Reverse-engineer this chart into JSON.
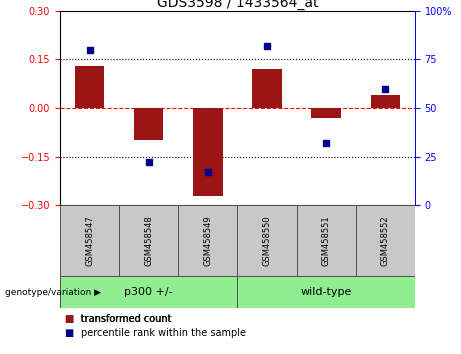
{
  "title": "GDS3598 / 1433564_at",
  "samples": [
    "GSM458547",
    "GSM458548",
    "GSM458549",
    "GSM458550",
    "GSM458551",
    "GSM458552"
  ],
  "red_bars": [
    0.13,
    -0.1,
    -0.27,
    0.12,
    -0.03,
    0.04
  ],
  "blue_dots_pct": [
    80,
    22,
    17,
    82,
    32,
    60
  ],
  "ylim_left": [
    -0.3,
    0.3
  ],
  "ylim_right": [
    0,
    100
  ],
  "yticks_left": [
    -0.3,
    -0.15,
    0,
    0.15,
    0.3
  ],
  "yticks_right": [
    0,
    25,
    50,
    75,
    100
  ],
  "hlines": [
    0.15,
    0.0,
    -0.15
  ],
  "group_label": "genotype/variation",
  "groups": [
    {
      "label": "p300 +/-",
      "start": 0,
      "end": 2,
      "color": "#90EE90"
    },
    {
      "label": "wild-type",
      "start": 3,
      "end": 5,
      "color": "#90EE90"
    }
  ],
  "legend_red": "transformed count",
  "legend_blue": "percentile rank within the sample",
  "bar_color": "#9B1515",
  "dot_color": "#00008B",
  "bar_width": 0.5,
  "title_fontsize": 10,
  "tick_fontsize": 7,
  "sample_box_color": "#C8C8C8",
  "separator_color": "#505050"
}
